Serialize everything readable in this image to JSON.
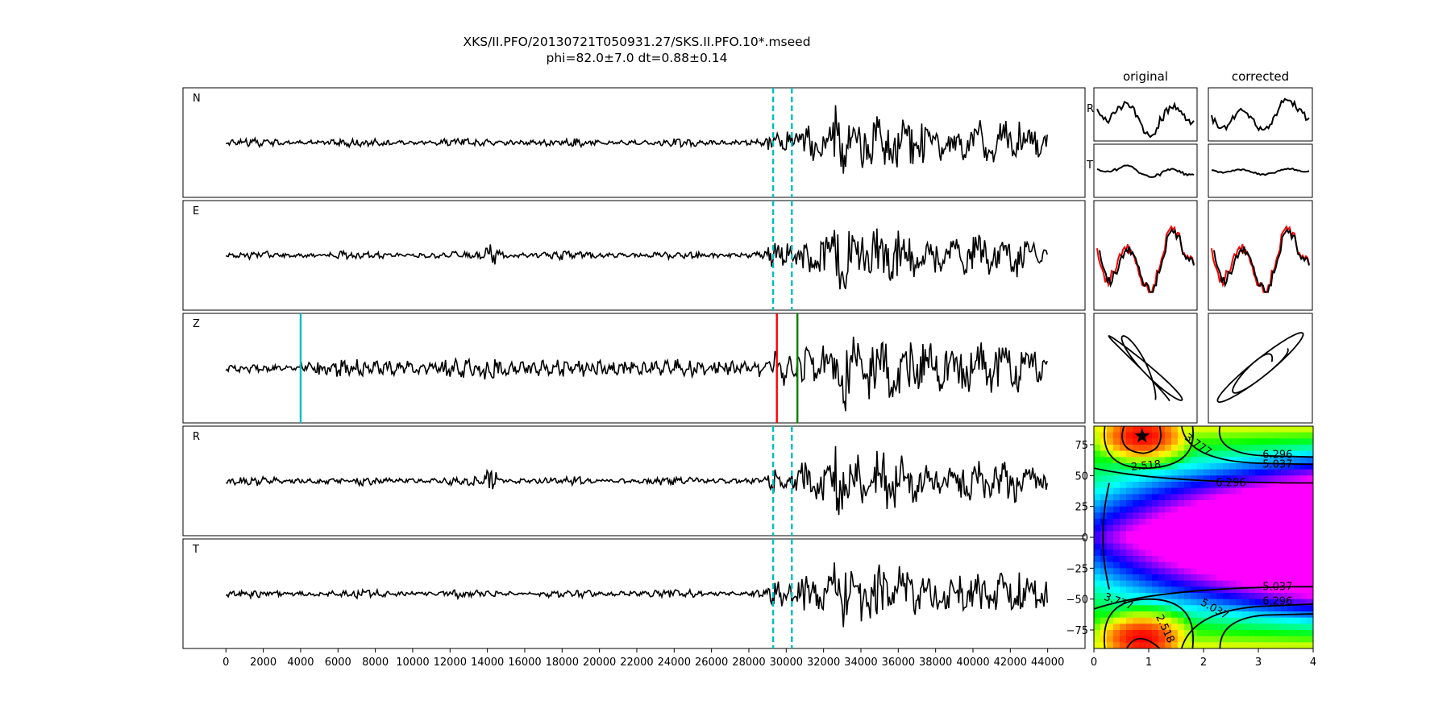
{
  "figure": {
    "title_line1": "XKS/II.PFO/20130721T050931.27/SKS.II.PFO.10*.mseed",
    "title_line2": "phi=82.0±7.0 dt=0.88±0.14"
  },
  "chart_data": [
    {
      "type": "line",
      "name": "waveform-traces",
      "traces": [
        "N",
        "E",
        "Z",
        "R",
        "T"
      ],
      "xlim": [
        -2300,
        46000
      ],
      "x_ticks": [
        0,
        2000,
        4000,
        6000,
        8000,
        10000,
        12000,
        14000,
        16000,
        18000,
        20000,
        22000,
        24000,
        26000,
        28000,
        30000,
        32000,
        34000,
        36000,
        38000,
        40000,
        42000,
        44000
      ],
      "x_tick_labels": [
        "0",
        "2000",
        "4000",
        "6000",
        "8000",
        "10000",
        "12000",
        "14000",
        "16000",
        "18000",
        "20000",
        "22000",
        "24000",
        "26000",
        "28000",
        "30000",
        "32000",
        "34000",
        "36000",
        "38000",
        "40000",
        "42000",
        "44000"
      ],
      "data_range": [
        0,
        44000
      ],
      "window_markers": {
        "start": 29300,
        "end": 30300,
        "color": "#00bfbf",
        "style": "dashed",
        "traces": [
          "N",
          "E",
          "R",
          "T"
        ]
      },
      "phase_markers": [
        {
          "trace": "Z",
          "x": 4000,
          "color": "#00bfbf"
        },
        {
          "trace": "Z",
          "x": 29500,
          "color": "#ff0000"
        },
        {
          "trace": "Z",
          "x": 30600,
          "color": "#008000"
        }
      ]
    },
    {
      "type": "line",
      "name": "particle-panels",
      "columns": [
        "original",
        "corrected"
      ],
      "row_labels": [
        "R",
        "T"
      ],
      "rows": [
        "R component",
        "T component",
        "fast/slow overlay",
        "particle motion"
      ],
      "overlay_colors": [
        "#000000",
        "#ff0000"
      ]
    },
    {
      "type": "heatmap",
      "name": "error-surface",
      "xlabel": "",
      "ylabel": "",
      "xlim": [
        0,
        4
      ],
      "ylim": [
        -90,
        90
      ],
      "x_ticks": [
        0,
        1,
        2,
        3,
        4
      ],
      "x_tick_labels": [
        "0",
        "1",
        "2",
        "3",
        "4"
      ],
      "y_ticks": [
        75,
        50,
        25,
        0,
        -25,
        -50,
        -75
      ],
      "y_tick_labels": [
        "75",
        "50",
        "25",
        "0",
        "−25",
        "−50",
        "−75"
      ],
      "colormap": "gist_rainbow",
      "contour_levels": [
        2.518,
        3.777,
        5.037,
        6.296
      ],
      "contour_labels": [
        {
          "text": "3.777",
          "x": 1.9,
          "y": 75,
          "angle": 35
        },
        {
          "text": "6.296",
          "x": 3.35,
          "y": 67,
          "angle": 0
        },
        {
          "text": "5.037",
          "x": 3.35,
          "y": 59,
          "angle": 0
        },
        {
          "text": "2.518",
          "x": 0.95,
          "y": 58,
          "angle": -6
        },
        {
          "text": "6.296",
          "x": 2.5,
          "y": 44,
          "angle": 0
        },
        {
          "text": "5.037",
          "x": 3.35,
          "y": -40,
          "angle": 0
        },
        {
          "text": "6.296",
          "x": 3.35,
          "y": -52,
          "angle": 0
        },
        {
          "text": "3.777",
          "x": 0.45,
          "y": -52,
          "angle": 20
        },
        {
          "text": "5.037",
          "x": 2.2,
          "y": -58,
          "angle": 30
        },
        {
          "text": "2.518",
          "x": 1.3,
          "y": -74,
          "angle": 65
        }
      ],
      "best_fit": {
        "dt": 0.88,
        "phi": 82.0,
        "marker": "star"
      }
    }
  ]
}
